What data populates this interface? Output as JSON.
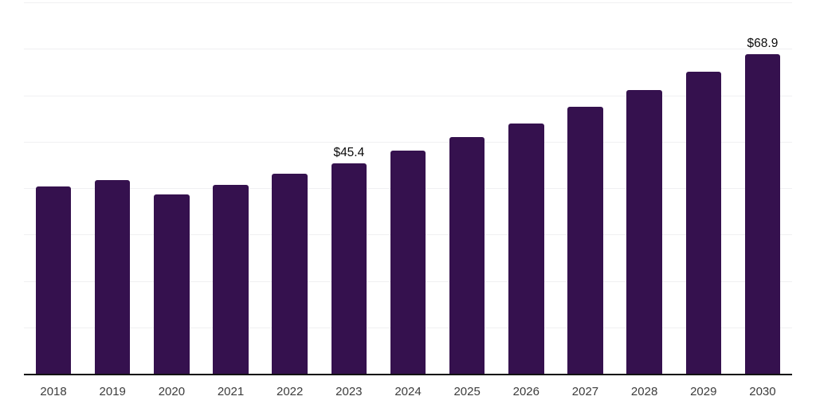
{
  "chart_data": {
    "type": "bar",
    "title": "",
    "xlabel": "",
    "ylabel": "",
    "categories": [
      "2018",
      "2019",
      "2020",
      "2021",
      "2022",
      "2023",
      "2024",
      "2025",
      "2026",
      "2027",
      "2028",
      "2029",
      "2030"
    ],
    "values": [
      40.3,
      41.8,
      38.6,
      40.7,
      43.1,
      45.4,
      48.0,
      51.0,
      53.9,
      57.5,
      61.1,
      65.1,
      68.9
    ],
    "value_labels": [
      "",
      "",
      "",
      "",
      "",
      "$45.4",
      "",
      "",
      "",
      "",
      "",
      "",
      "$68.9"
    ],
    "ylim": [
      0,
      80
    ],
    "gridline_interval": 10,
    "grid": "horizontal-on",
    "legend": "none",
    "y_axis_tick_labels_visible": false,
    "colors": {
      "bar": "#35114E",
      "gridline": "#F0F0F2",
      "axis": "#121212",
      "tick_label": "#3C3C3C",
      "value_label": "#0A0A0A",
      "background": "#FFFFFF"
    }
  }
}
